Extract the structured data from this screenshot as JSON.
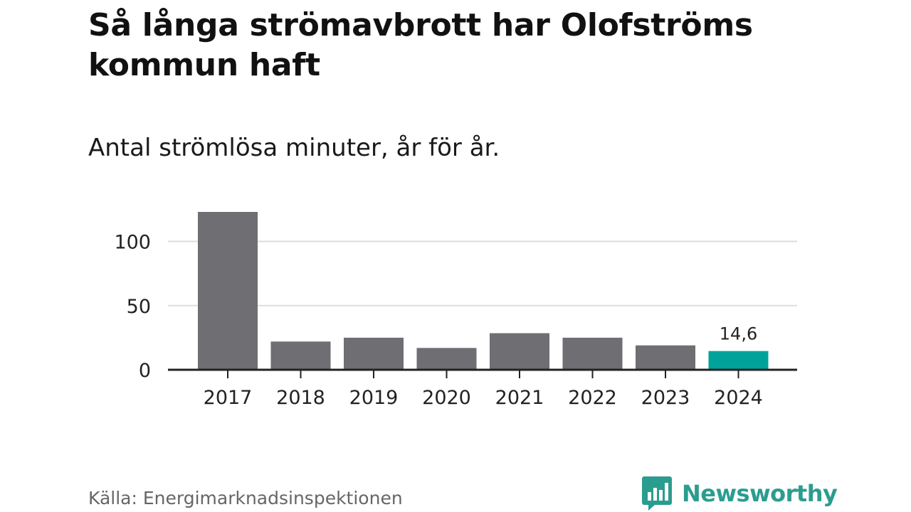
{
  "title": "Så långa strömavbrott har Olofströms kommun haft",
  "subtitle": "Antal strömlösa minuter, år för år.",
  "source": "Källa: Energimarknadsinspektionen",
  "brand": {
    "name": "Newsworthy",
    "icon": "newsworthy-logo-icon",
    "color": "#2a9d8f"
  },
  "chart_data": {
    "type": "bar",
    "title": "Så långa strömavbrott har Olofströms kommun haft",
    "subtitle": "Antal strömlösa minuter, år för år.",
    "xlabel": "",
    "ylabel": "",
    "categories": [
      "2017",
      "2018",
      "2019",
      "2020",
      "2021",
      "2022",
      "2023",
      "2024"
    ],
    "values": [
      123,
      22,
      25,
      17,
      28.5,
      25,
      19,
      14.6
    ],
    "highlight_index": 7,
    "highlight_label": "14,6",
    "yticks": [
      0,
      50,
      100
    ],
    "ytick_labels": [
      "0",
      "50",
      "100"
    ],
    "ylim": [
      0,
      123
    ],
    "grid": true,
    "colors": {
      "bar": "#6e6e73",
      "highlight": "#00a39a",
      "grid": "#dddddd",
      "axis": "#222222"
    }
  }
}
